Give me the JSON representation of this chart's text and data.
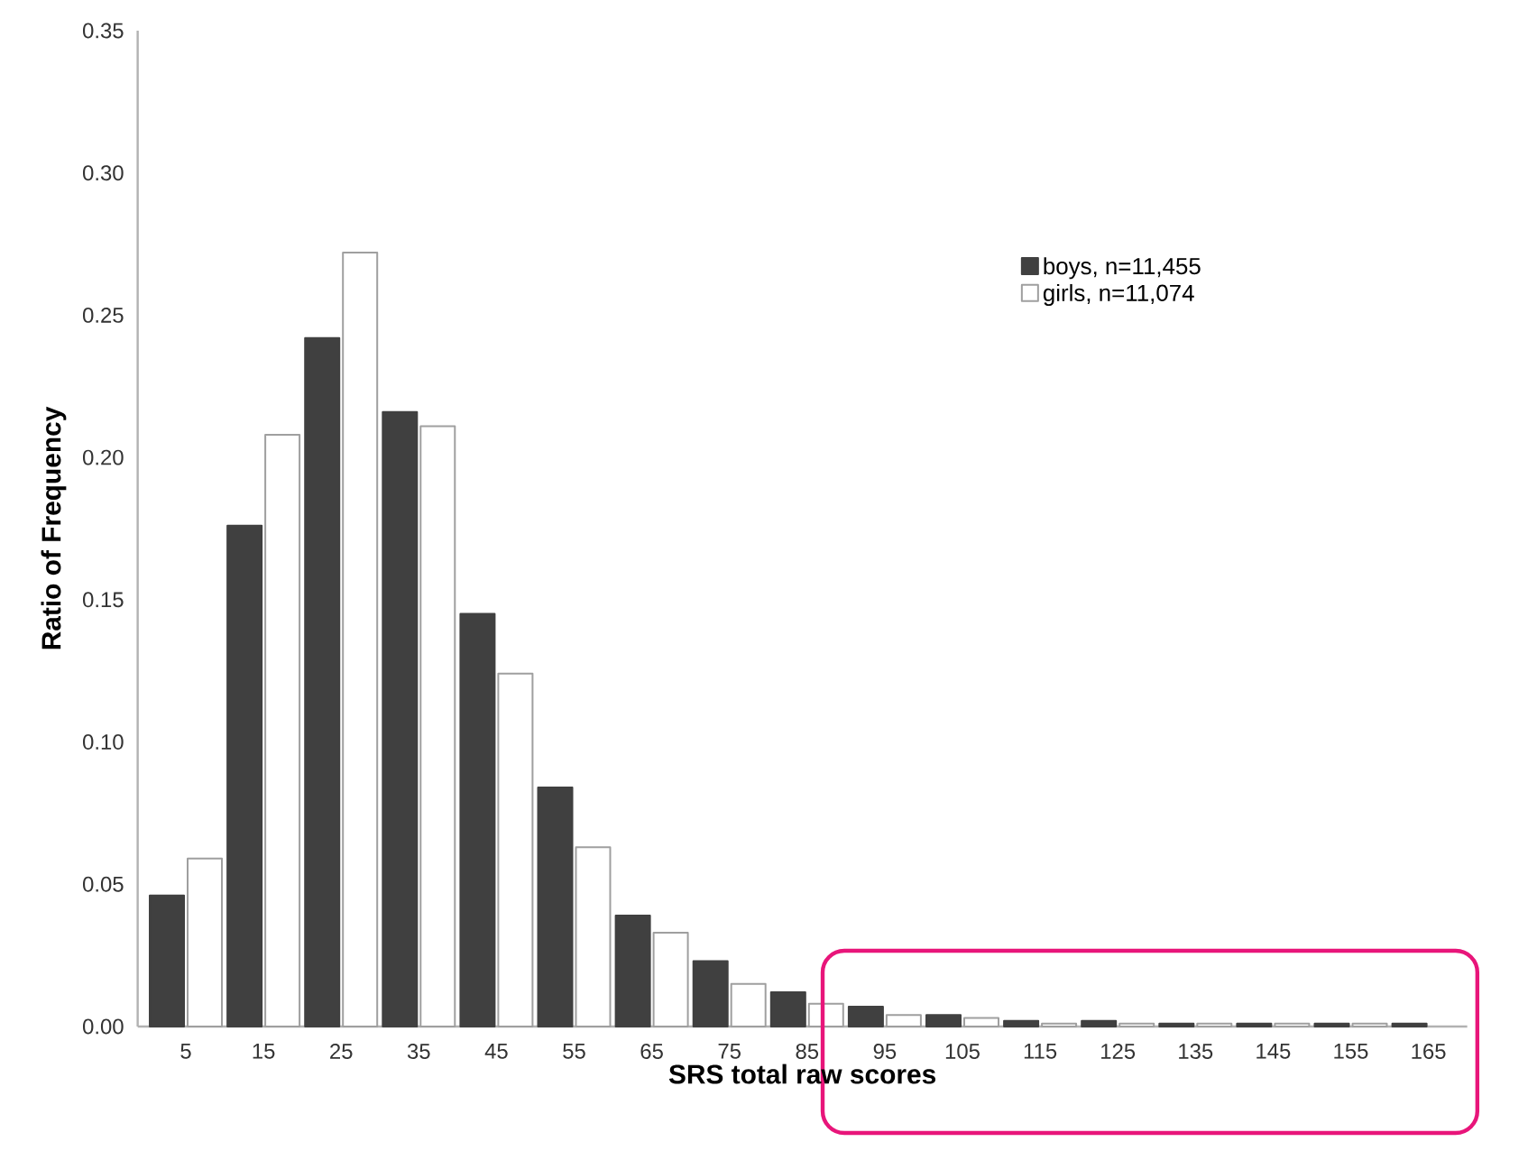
{
  "chart_data": {
    "type": "bar",
    "xlabel": "SRS total raw scores",
    "ylabel": "Ratio of Frequency",
    "categories": [
      "5",
      "15",
      "25",
      "35",
      "45",
      "55",
      "65",
      "75",
      "85",
      "95",
      "105",
      "115",
      "125",
      "135",
      "145",
      "155",
      "165"
    ],
    "series": [
      {
        "name": "boys, n=11,455",
        "color": "#404040",
        "values": [
          0.046,
          0.176,
          0.242,
          0.216,
          0.145,
          0.084,
          0.039,
          0.023,
          0.012,
          0.007,
          0.004,
          0.002,
          0.002,
          0.001,
          0.001,
          0.001,
          0.001
        ]
      },
      {
        "name": "girls, n=11,074",
        "color": "#ffffff",
        "values": [
          0.059,
          0.208,
          0.272,
          0.211,
          0.124,
          0.063,
          0.033,
          0.015,
          0.008,
          0.004,
          0.003,
          0.001,
          0.001,
          0.001,
          0.001,
          0.001,
          null
        ]
      }
    ],
    "ylim": [
      0,
      0.35
    ],
    "yticks": [
      {
        "value": 0,
        "label": "0.00"
      },
      {
        "value": 0.05,
        "label": "0.05"
      },
      {
        "value": 0.1,
        "label": "0.10"
      },
      {
        "value": 0.15,
        "label": "0.15"
      },
      {
        "value": 0.2,
        "label": "0.20"
      },
      {
        "value": 0.25,
        "label": "0.25"
      },
      {
        "value": 0.3,
        "label": "0.30"
      },
      {
        "value": 0.35,
        "label": "0.35"
      }
    ],
    "legend": "top right",
    "grid": false
  }
}
